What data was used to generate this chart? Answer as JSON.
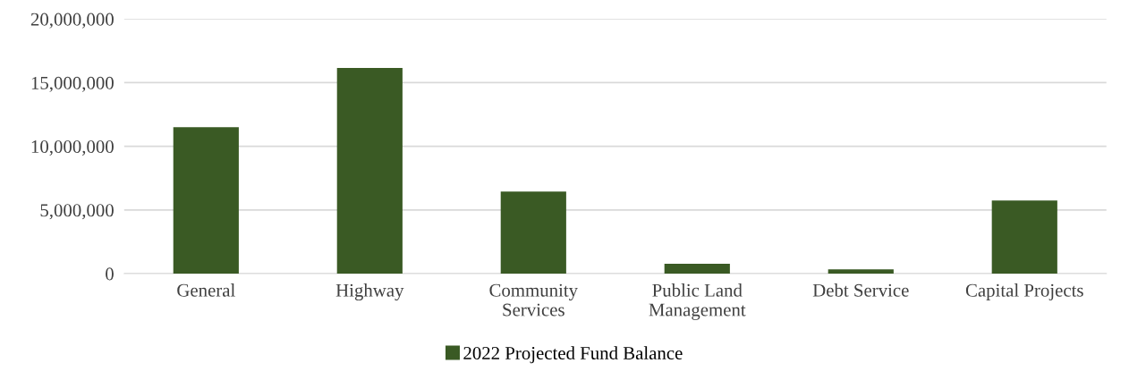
{
  "chart_data": {
    "type": "bar",
    "categories": [
      "General",
      "Highway",
      "Community\nServices",
      "Public Land\nManagement",
      "Debt Service",
      "Capital Projects"
    ],
    "series": [
      {
        "name": "2022 Projected Fund Balance",
        "color": "#3a5a24",
        "values": [
          11500000,
          16150000,
          6450000,
          770000,
          330000,
          5750000
        ]
      }
    ],
    "ylim": [
      0,
      20000000
    ],
    "yticks": [
      {
        "value": 0,
        "label": "0"
      },
      {
        "value": 5000000,
        "label": "5,000,000"
      },
      {
        "value": 10000000,
        "label": "10,000,000"
      },
      {
        "value": 15000000,
        "label": "15,000,000"
      },
      {
        "value": 20000000,
        "label": "20,000,000"
      }
    ],
    "grid": "y",
    "legend": "bottom"
  }
}
